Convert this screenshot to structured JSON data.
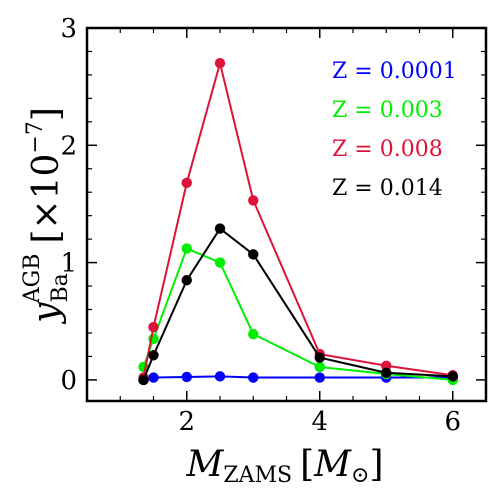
{
  "chart_data": {
    "type": "line",
    "title": "",
    "xlabel": {
      "symbol": "M",
      "sub": "ZAMS",
      "bracket_open": "[",
      "unit_symbol": "M",
      "unit_sub": "⊙",
      "bracket_close": "]"
    },
    "ylabel": {
      "symbol": "y",
      "sub": "Ba",
      "sup": "AGB",
      "unit": "[×10",
      "unit_exp": "−7",
      "unit_close": "]"
    },
    "xlim": [
      0.5,
      6.5
    ],
    "ylim": [
      -0.18,
      3.0
    ],
    "xticks": [
      2,
      4,
      6
    ],
    "xtick_labels": [
      "2",
      "4",
      "6"
    ],
    "yticks": [
      0,
      1,
      2,
      3
    ],
    "ytick_labels": [
      "0",
      "1",
      "2",
      "3"
    ],
    "grid": false,
    "legend_position": "top-right",
    "series": [
      {
        "name": "Z = 0.0001",
        "color": "#0000ff",
        "x": [
          1.35,
          1.5,
          2.0,
          2.5,
          3.0,
          4.0,
          5.0,
          6.0
        ],
        "y": [
          0.0,
          0.02,
          0.025,
          0.03,
          0.02,
          0.02,
          0.02,
          0.02
        ]
      },
      {
        "name": "Z = 0.003",
        "color": "#00ee00",
        "x": [
          1.35,
          1.5,
          2.0,
          2.5,
          3.0,
          4.0,
          5.0,
          6.0
        ],
        "y": [
          0.11,
          0.35,
          1.12,
          1.0,
          0.39,
          0.11,
          0.05,
          0.0
        ]
      },
      {
        "name": "Z = 0.008",
        "color": "#dc143c",
        "x": [
          1.35,
          1.5,
          2.0,
          2.5,
          3.0,
          4.0,
          5.0,
          6.0
        ],
        "y": [
          0.02,
          0.45,
          1.68,
          2.7,
          1.53,
          0.22,
          0.12,
          0.04
        ]
      },
      {
        "name": "Z = 0.014",
        "color": "#000000",
        "x": [
          1.35,
          1.5,
          2.0,
          2.5,
          3.0,
          4.0,
          5.0,
          6.0
        ],
        "y": [
          0.0,
          0.21,
          0.85,
          1.29,
          1.07,
          0.19,
          0.06,
          0.03
        ]
      }
    ]
  }
}
